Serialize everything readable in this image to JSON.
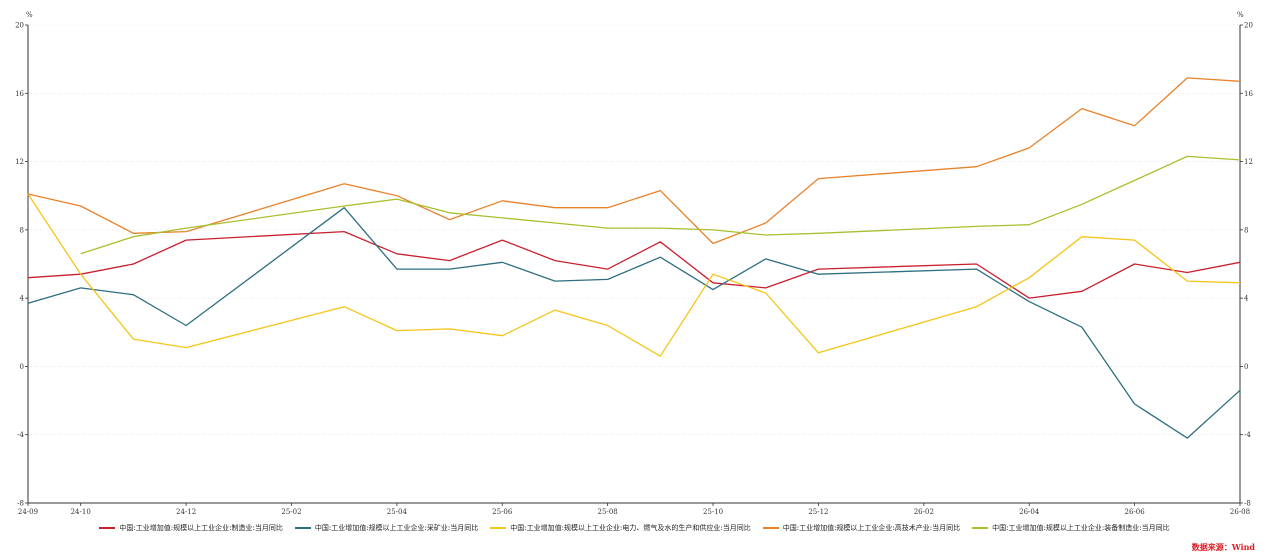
{
  "chart_data": {
    "type": "line",
    "y_unit_left": "%",
    "y_unit_right": "%",
    "ylim": [
      -8,
      20
    ],
    "yticks": [
      -8,
      -4,
      0,
      4,
      8,
      12,
      16,
      20
    ],
    "x_tick_labels": [
      "24-09",
      "24-10",
      "24-12",
      "25-02",
      "25-04",
      "25-06",
      "25-08",
      "25-10",
      "25-12",
      "26-02",
      "26-04",
      "26-06",
      "26-08"
    ],
    "x_tick_months": [
      0,
      1,
      3,
      5,
      7,
      9,
      11,
      13,
      15,
      17,
      19,
      21,
      23
    ],
    "grid": "horizontal dotted",
    "legend_position": "bottom",
    "series": [
      {
        "name": "中国:工业增加值:规模以上工业企业:制造业:当月同比",
        "color": "#c8202f",
        "points": [
          [
            0,
            5.2
          ],
          [
            1,
            5.4
          ],
          [
            2,
            6.0
          ],
          [
            3,
            7.4
          ],
          [
            6,
            7.9
          ],
          [
            7,
            6.6
          ],
          [
            8,
            6.2
          ],
          [
            9,
            7.4
          ],
          [
            10,
            6.2
          ],
          [
            11,
            5.7
          ],
          [
            12,
            7.3
          ],
          [
            13,
            4.9
          ],
          [
            14,
            4.6
          ],
          [
            15,
            5.7
          ],
          [
            18,
            6.0
          ],
          [
            19,
            4.0
          ],
          [
            20,
            4.4
          ],
          [
            21,
            6.0
          ],
          [
            22,
            5.5
          ],
          [
            23,
            6.1
          ]
        ]
      },
      {
        "name": "中国:工业增加值:规模以上工业企业:采矿业:当月同比",
        "color": "#2e6e80",
        "points": [
          [
            0,
            3.7
          ],
          [
            1,
            4.6
          ],
          [
            2,
            4.2
          ],
          [
            3,
            2.4
          ],
          [
            6,
            9.3
          ],
          [
            7,
            5.7
          ],
          [
            8,
            5.7
          ],
          [
            9,
            6.1
          ],
          [
            10,
            5.0
          ],
          [
            11,
            5.1
          ],
          [
            12,
            6.4
          ],
          [
            13,
            4.5
          ],
          [
            14,
            6.3
          ],
          [
            15,
            5.4
          ],
          [
            18,
            5.7
          ],
          [
            19,
            3.8
          ],
          [
            20,
            2.3
          ],
          [
            21,
            -2.2
          ],
          [
            22,
            -4.2
          ],
          [
            23,
            -1.4
          ]
        ]
      },
      {
        "name": "中国:工业增加值:规模以上工业企业:电力、燃气及水的生产和供应业:当月同比",
        "color": "#f5c518",
        "points": [
          [
            0,
            10.1
          ],
          [
            1,
            5.4
          ],
          [
            2,
            1.6
          ],
          [
            3,
            1.1
          ],
          [
            6,
            3.5
          ],
          [
            7,
            2.1
          ],
          [
            8,
            2.2
          ],
          [
            9,
            1.8
          ],
          [
            10,
            3.3
          ],
          [
            11,
            2.4
          ],
          [
            12,
            0.6
          ],
          [
            13,
            5.4
          ],
          [
            14,
            4.3
          ],
          [
            15,
            0.8
          ],
          [
            18,
            3.5
          ],
          [
            19,
            5.2
          ],
          [
            20,
            7.6
          ],
          [
            21,
            7.4
          ],
          [
            22,
            5.0
          ],
          [
            23,
            4.9
          ]
        ]
      },
      {
        "name": "中国:工业增加值:规模以上工业企业:高技术产业:当月同比",
        "color": "#e8822b",
        "points": [
          [
            0,
            10.1
          ],
          [
            1,
            9.4
          ],
          [
            2,
            7.8
          ],
          [
            3,
            7.9
          ],
          [
            6,
            10.7
          ],
          [
            7,
            10.0
          ],
          [
            8,
            8.6
          ],
          [
            9,
            9.7
          ],
          [
            10,
            9.3
          ],
          [
            11,
            9.3
          ],
          [
            12,
            10.3
          ],
          [
            13,
            7.2
          ],
          [
            14,
            8.4
          ],
          [
            15,
            11.0
          ],
          [
            18,
            11.7
          ],
          [
            19,
            12.8
          ],
          [
            20,
            15.1
          ],
          [
            21,
            14.1
          ],
          [
            22,
            16.9
          ],
          [
            23,
            16.7
          ]
        ]
      },
      {
        "name": "中国:工业增加值:规模以上工业企业:装备制造业:当月同比",
        "color": "#a8bf2e",
        "points": [
          [
            1,
            6.6
          ],
          [
            2,
            7.6
          ],
          [
            3,
            8.1
          ],
          [
            6,
            9.4
          ],
          [
            7,
            9.8
          ],
          [
            8,
            9.0
          ],
          [
            9,
            8.7
          ],
          [
            10,
            8.4
          ],
          [
            11,
            8.1
          ],
          [
            12,
            8.1
          ],
          [
            13,
            8.0
          ],
          [
            14,
            7.7
          ],
          [
            15,
            7.8
          ],
          [
            18,
            8.2
          ],
          [
            19,
            8.3
          ],
          [
            20,
            9.5
          ],
          [
            21,
            10.9
          ],
          [
            22,
            12.3
          ],
          [
            23,
            12.1
          ]
        ]
      }
    ]
  },
  "source_label": "数据来源：Wind"
}
